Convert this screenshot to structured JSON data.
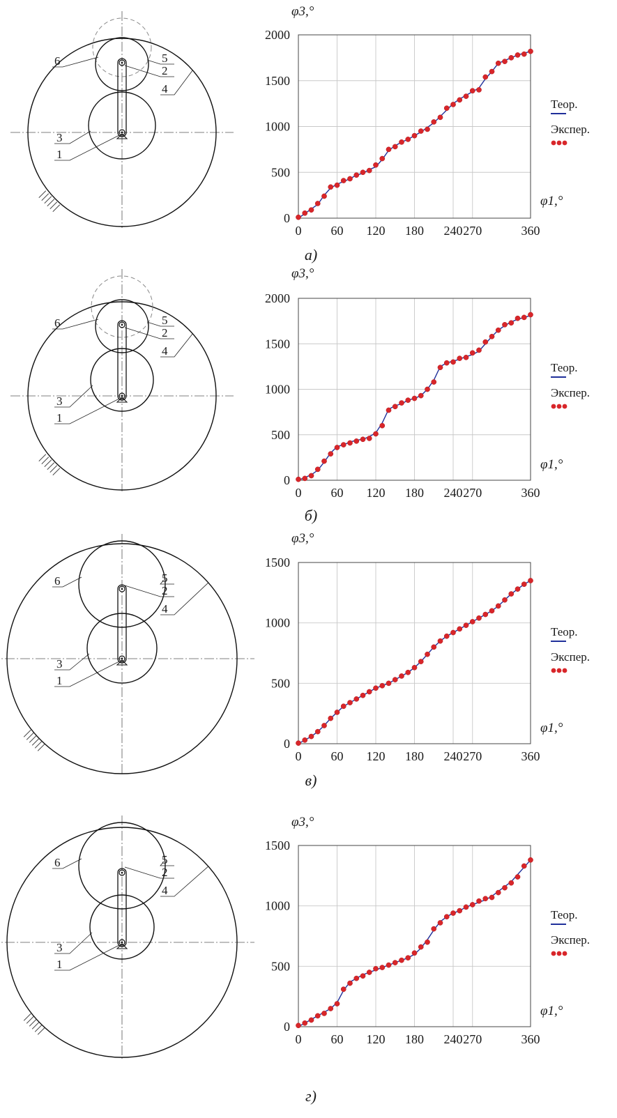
{
  "colors": {
    "theory": "#1f2f9a",
    "experiment": "#d8262a",
    "grid": "#c8c8c8",
    "frame": "#444444"
  },
  "chart_data": [
    {
      "type": "line",
      "panel": "а)",
      "xlabel": "φ1,°",
      "ylabel": "φ3,°",
      "xticks": [
        0,
        60,
        120,
        180,
        240,
        270,
        360
      ],
      "yticks": [
        0,
        500,
        1000,
        1500,
        2000
      ],
      "xlim": [
        0,
        360
      ],
      "ylim": [
        0,
        2000
      ],
      "grid": true,
      "legend_position": "right",
      "series": [
        {
          "name": "Теор.",
          "style": "line",
          "x": [
            0,
            10,
            20,
            30,
            40,
            50,
            60,
            70,
            80,
            90,
            100,
            110,
            120,
            130,
            140,
            150,
            160,
            170,
            180,
            190,
            200,
            210,
            220,
            230,
            240,
            250,
            260,
            270,
            280,
            290,
            300,
            310,
            320,
            330,
            340,
            350,
            360
          ],
          "y": [
            0,
            50,
            100,
            150,
            250,
            330,
            370,
            400,
            430,
            470,
            490,
            530,
            560,
            640,
            740,
            790,
            830,
            860,
            900,
            940,
            990,
            1040,
            1110,
            1180,
            1250,
            1300,
            1340,
            1380,
            1420,
            1520,
            1600,
            1690,
            1720,
            1750,
            1780,
            1800,
            1820
          ]
        },
        {
          "name": "Экспер.",
          "style": "markers",
          "x": [
            0,
            10,
            20,
            30,
            40,
            50,
            60,
            70,
            80,
            90,
            100,
            110,
            120,
            130,
            140,
            150,
            160,
            170,
            180,
            190,
            200,
            210,
            220,
            230,
            240,
            250,
            260,
            270,
            280,
            290,
            300,
            310,
            320,
            330,
            340,
            350,
            360
          ],
          "y": [
            10,
            55,
            90,
            160,
            240,
            340,
            360,
            410,
            430,
            470,
            500,
            520,
            580,
            650,
            750,
            780,
            830,
            860,
            900,
            950,
            970,
            1050,
            1100,
            1200,
            1240,
            1290,
            1330,
            1390,
            1400,
            1540,
            1600,
            1690,
            1710,
            1750,
            1780,
            1790,
            1820
          ]
        }
      ]
    },
    {
      "type": "line",
      "panel": "б)",
      "xlabel": "φ1,°",
      "ylabel": "φ3,°",
      "xticks": [
        0,
        60,
        120,
        180,
        240,
        270,
        360
      ],
      "yticks": [
        0,
        500,
        1000,
        1500,
        2000
      ],
      "xlim": [
        0,
        360
      ],
      "ylim": [
        0,
        2000
      ],
      "grid": true,
      "legend_position": "right",
      "series": [
        {
          "name": "Теор.",
          "style": "line",
          "x": [
            0,
            10,
            20,
            30,
            40,
            50,
            60,
            70,
            80,
            90,
            100,
            110,
            120,
            130,
            140,
            150,
            160,
            170,
            180,
            190,
            200,
            210,
            220,
            230,
            240,
            250,
            260,
            270,
            280,
            290,
            300,
            310,
            320,
            330,
            340,
            350,
            360
          ],
          "y": [
            0,
            30,
            60,
            110,
            200,
            300,
            370,
            390,
            420,
            440,
            450,
            480,
            520,
            630,
            780,
            820,
            840,
            880,
            900,
            930,
            1000,
            1100,
            1250,
            1290,
            1310,
            1330,
            1360,
            1380,
            1420,
            1500,
            1580,
            1650,
            1700,
            1740,
            1770,
            1790,
            1810
          ]
        },
        {
          "name": "Экспер.",
          "style": "markers",
          "x": [
            0,
            10,
            20,
            30,
            40,
            50,
            60,
            70,
            80,
            90,
            100,
            110,
            120,
            130,
            140,
            150,
            160,
            170,
            180,
            190,
            200,
            210,
            220,
            230,
            240,
            250,
            260,
            270,
            280,
            290,
            300,
            310,
            320,
            330,
            340,
            350,
            360
          ],
          "y": [
            10,
            20,
            50,
            120,
            210,
            290,
            360,
            390,
            410,
            430,
            450,
            460,
            510,
            600,
            770,
            810,
            850,
            880,
            900,
            930,
            1000,
            1080,
            1240,
            1290,
            1300,
            1340,
            1350,
            1400,
            1430,
            1520,
            1580,
            1650,
            1710,
            1730,
            1780,
            1790,
            1820
          ]
        }
      ]
    },
    {
      "type": "line",
      "panel": "в)",
      "xlabel": "φ1,°",
      "ylabel": "φ3,°",
      "xticks": [
        0,
        60,
        120,
        180,
        240,
        270,
        360
      ],
      "yticks": [
        0,
        500,
        1000,
        1500
      ],
      "xlim": [
        0,
        360
      ],
      "ylim": [
        0,
        1500
      ],
      "grid": true,
      "legend_position": "right",
      "series": [
        {
          "name": "Теор.",
          "style": "line",
          "x": [
            0,
            10,
            20,
            30,
            40,
            50,
            60,
            70,
            80,
            90,
            100,
            110,
            120,
            130,
            140,
            150,
            160,
            170,
            180,
            190,
            200,
            210,
            220,
            230,
            240,
            250,
            260,
            270,
            280,
            290,
            300,
            310,
            320,
            330,
            340,
            350,
            360
          ],
          "y": [
            0,
            30,
            60,
            100,
            150,
            210,
            260,
            310,
            340,
            370,
            400,
            430,
            460,
            480,
            500,
            530,
            560,
            590,
            630,
            680,
            740,
            800,
            850,
            890,
            920,
            950,
            980,
            1010,
            1040,
            1070,
            1100,
            1140,
            1190,
            1240,
            1280,
            1320,
            1350
          ]
        },
        {
          "name": "Экспер.",
          "style": "markers",
          "x": [
            0,
            10,
            20,
            30,
            40,
            50,
            60,
            70,
            80,
            90,
            100,
            110,
            120,
            130,
            140,
            150,
            160,
            170,
            180,
            190,
            200,
            210,
            220,
            230,
            240,
            250,
            260,
            270,
            280,
            290,
            300,
            310,
            320,
            330,
            340,
            350,
            360
          ],
          "y": [
            5,
            30,
            60,
            100,
            150,
            210,
            260,
            310,
            340,
            370,
            400,
            430,
            460,
            480,
            500,
            530,
            560,
            590,
            630,
            680,
            740,
            800,
            850,
            890,
            920,
            950,
            980,
            1010,
            1040,
            1070,
            1100,
            1140,
            1190,
            1240,
            1280,
            1320,
            1350
          ]
        }
      ]
    },
    {
      "type": "line",
      "panel": "г)",
      "xlabel": "φ1,°",
      "ylabel": "φ3,°",
      "xticks": [
        0,
        60,
        120,
        180,
        240,
        270,
        360
      ],
      "yticks": [
        0,
        500,
        1000,
        1500
      ],
      "xlim": [
        0,
        360
      ],
      "ylim": [
        0,
        1500
      ],
      "grid": true,
      "legend_position": "right",
      "series": [
        {
          "name": "Теор.",
          "style": "line",
          "x": [
            0,
            10,
            20,
            30,
            40,
            50,
            60,
            70,
            80,
            90,
            100,
            110,
            120,
            130,
            140,
            150,
            160,
            170,
            180,
            190,
            200,
            210,
            220,
            230,
            240,
            250,
            260,
            270,
            280,
            290,
            300,
            310,
            320,
            330,
            340,
            350,
            360
          ],
          "y": [
            0,
            30,
            60,
            90,
            120,
            150,
            200,
            300,
            370,
            400,
            430,
            450,
            470,
            490,
            510,
            530,
            550,
            570,
            600,
            650,
            720,
            800,
            870,
            910,
            940,
            960,
            990,
            1010,
            1030,
            1050,
            1080,
            1120,
            1160,
            1200,
            1260,
            1320,
            1380
          ]
        },
        {
          "name": "Экспер.",
          "style": "markers",
          "x": [
            0,
            10,
            20,
            30,
            40,
            50,
            60,
            70,
            80,
            90,
            100,
            110,
            120,
            130,
            140,
            150,
            160,
            170,
            180,
            190,
            200,
            210,
            220,
            230,
            240,
            250,
            260,
            270,
            280,
            290,
            300,
            310,
            320,
            330,
            340,
            350,
            360
          ],
          "y": [
            10,
            30,
            55,
            90,
            110,
            150,
            190,
            310,
            360,
            400,
            420,
            450,
            480,
            490,
            510,
            530,
            550,
            570,
            610,
            660,
            700,
            810,
            860,
            910,
            940,
            960,
            990,
            1010,
            1040,
            1060,
            1070,
            1110,
            1150,
            1190,
            1240,
            1330,
            1380
          ]
        }
      ]
    }
  ],
  "diagrams": [
    {
      "labels": [
        "6",
        "5",
        "2",
        "4",
        "3",
        "1"
      ]
    },
    {
      "labels": [
        "6",
        "5",
        "2",
        "4",
        "3",
        "1"
      ]
    },
    {
      "labels": [
        "6",
        "5",
        "2",
        "4",
        "3",
        "1"
      ]
    },
    {
      "labels": [
        "6",
        "5",
        "2",
        "4",
        "3",
        "1"
      ]
    }
  ]
}
